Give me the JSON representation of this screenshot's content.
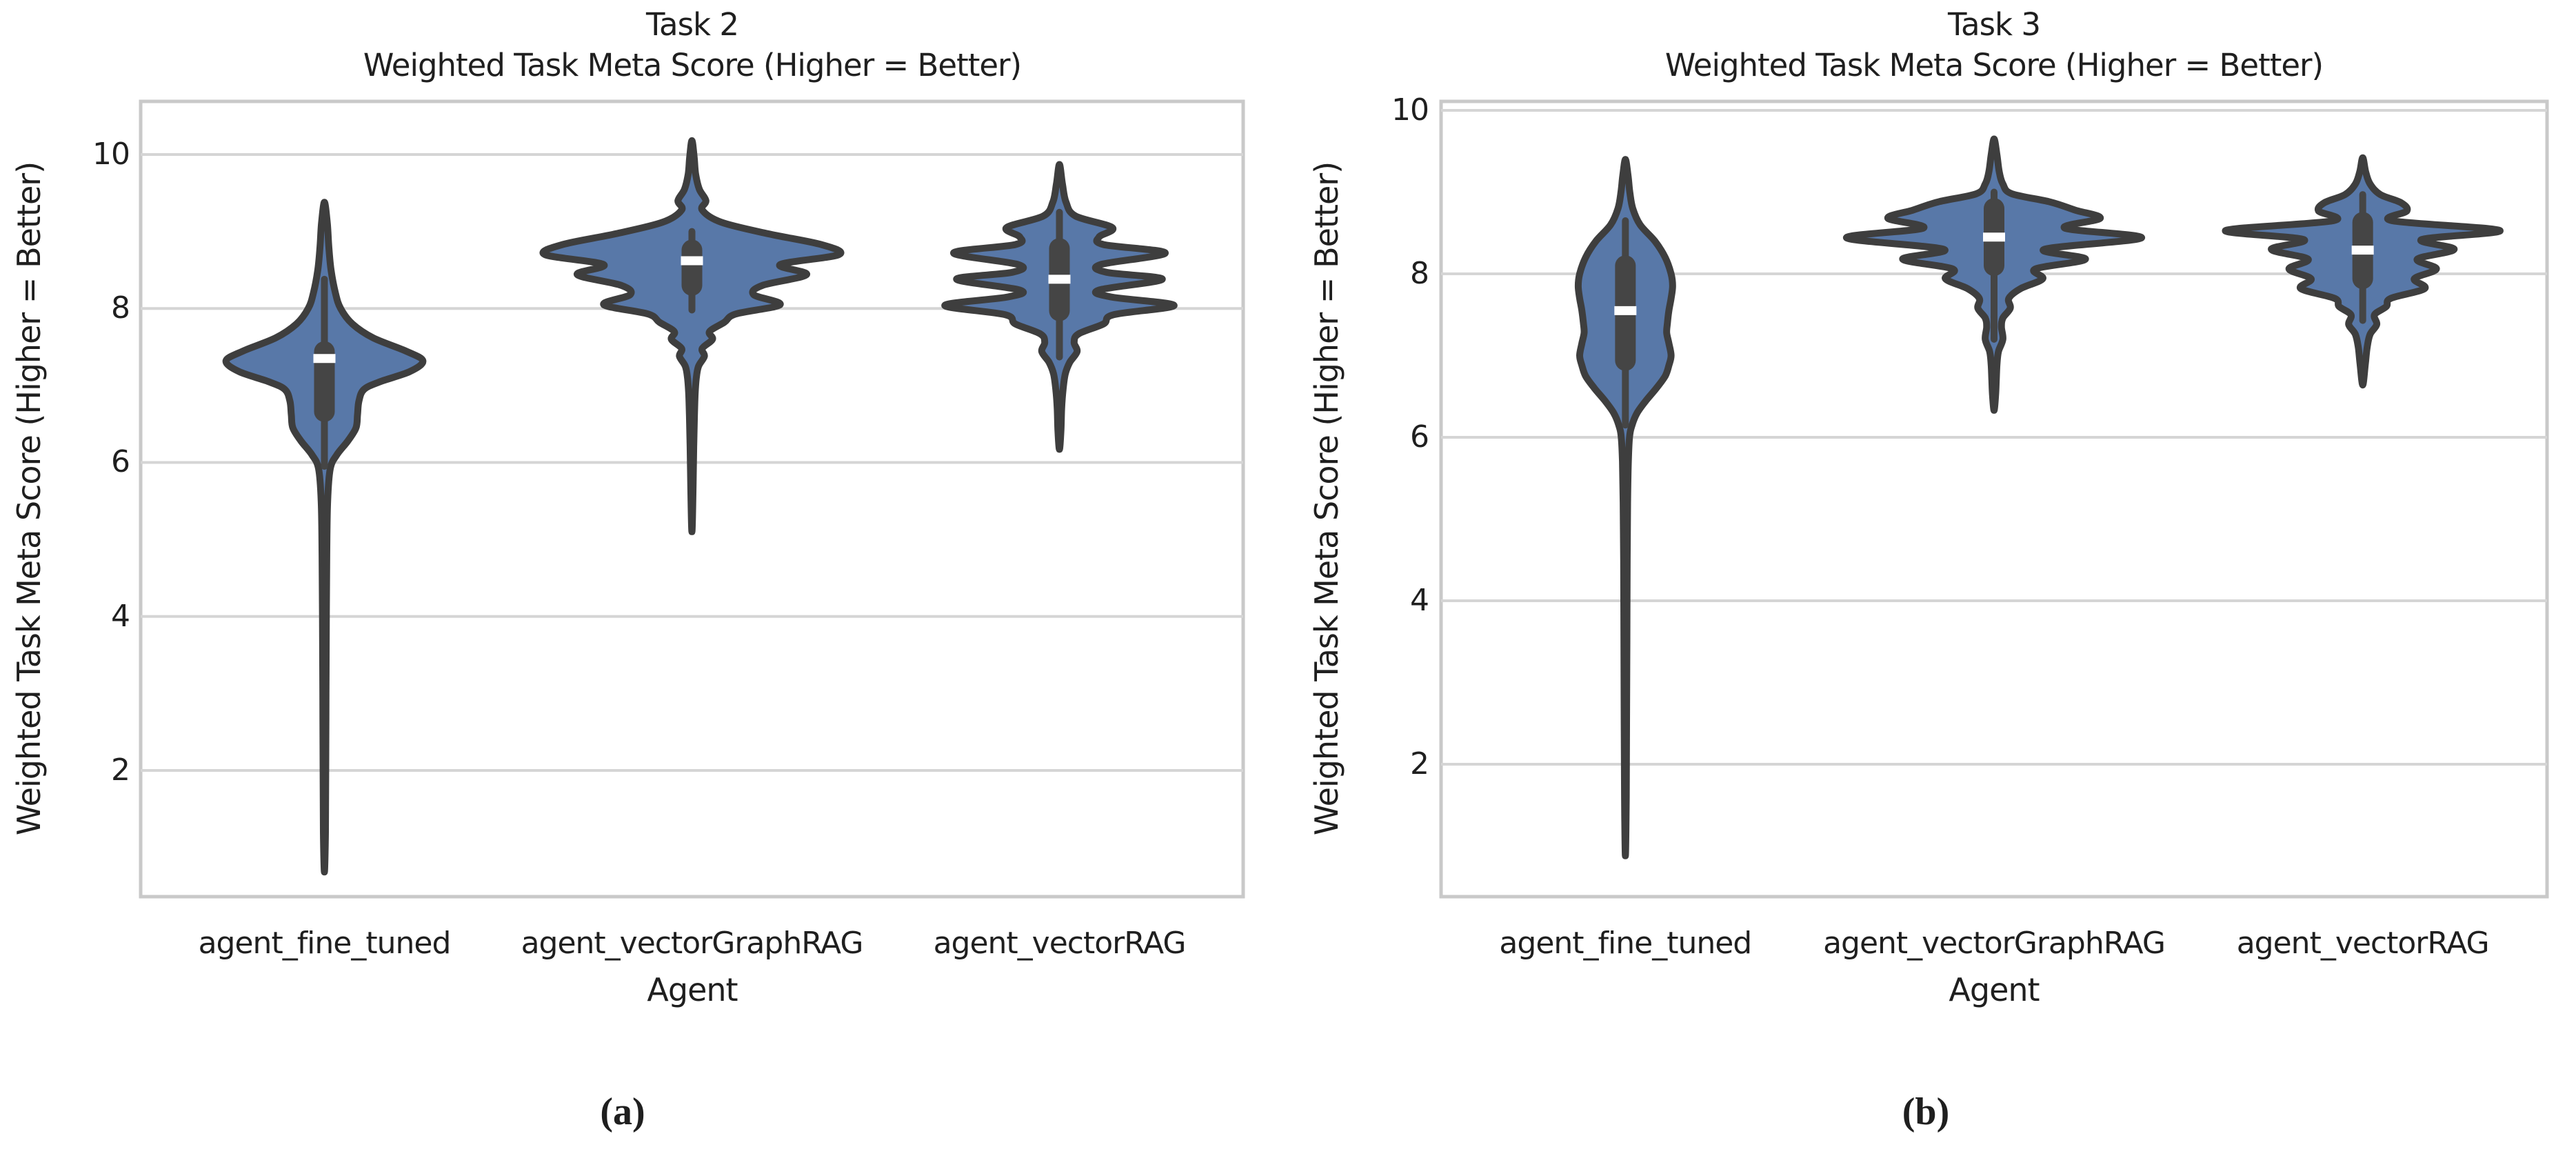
{
  "colors": {
    "background": "#FFFFFF",
    "violin_fill": "#5878A8",
    "violin_outline": "#3E3E3E",
    "box_fill": "#454545",
    "median": "#FFFFFF",
    "gridline": "#D5D5D5",
    "plot_border": "#C9C9C9",
    "text": "#1F1F1F"
  },
  "chart_data": [
    {
      "type": "violin",
      "caption": "(a)",
      "title": "Task 2",
      "subtitle": "Weighted Task Meta Score (Higher = Better)",
      "xlabel": "Agent",
      "ylabel": "Weighted Task Meta Score (Higher = Better)",
      "ylim": [
        0.36,
        10.69
      ],
      "yticks": [
        2,
        4,
        6,
        8,
        10
      ],
      "grid": "horizontal",
      "legend": "none",
      "categories": [
        "agent_fine_tuned",
        "agent_vectorGraphRAG",
        "agent_vectorRAG"
      ],
      "series": [
        {
          "name": "agent_fine_tuned",
          "range": [
            0.68,
            9.38
          ],
          "summary": {
            "whisker_low": 5.95,
            "q1": 6.66,
            "median": 7.35,
            "q3": 7.44,
            "whisker_high": 8.38
          },
          "profile": [
            [
              9.38,
              0
            ],
            [
              9.1,
              0.02
            ],
            [
              8.8,
              0.03
            ],
            [
              8.5,
              0.045
            ],
            [
              8.2,
              0.075
            ],
            [
              8.0,
              0.11
            ],
            [
              7.8,
              0.19
            ],
            [
              7.62,
              0.33
            ],
            [
              7.45,
              0.55
            ],
            [
              7.32,
              0.67
            ],
            [
              7.18,
              0.58
            ],
            [
              7.05,
              0.38
            ],
            [
              6.95,
              0.27
            ],
            [
              6.8,
              0.235
            ],
            [
              6.62,
              0.225
            ],
            [
              6.45,
              0.215
            ],
            [
              6.28,
              0.16
            ],
            [
              6.1,
              0.085
            ],
            [
              5.92,
              0.04
            ],
            [
              5.5,
              0.022
            ],
            [
              4.8,
              0.016
            ],
            [
              4.0,
              0.013
            ],
            [
              3.0,
              0.011
            ],
            [
              2.0,
              0.009
            ],
            [
              1.2,
              0.007
            ],
            [
              0.68,
              0
            ]
          ]
        },
        {
          "name": "agent_vectorGraphRAG",
          "range": [
            5.1,
            10.18
          ],
          "summary": {
            "whisker_low": 7.98,
            "q1": 8.3,
            "median": 8.62,
            "q3": 8.76,
            "whisker_high": 9.0
          },
          "profile": [
            [
              10.18,
              0
            ],
            [
              9.97,
              0.015
            ],
            [
              9.75,
              0.025
            ],
            [
              9.55,
              0.05
            ],
            [
              9.4,
              0.095
            ],
            [
              9.28,
              0.07
            ],
            [
              9.12,
              0.2
            ],
            [
              8.97,
              0.52
            ],
            [
              8.83,
              0.88
            ],
            [
              8.7,
              1.0
            ],
            [
              8.57,
              0.6
            ],
            [
              8.44,
              0.78
            ],
            [
              8.3,
              0.48
            ],
            [
              8.18,
              0.42
            ],
            [
              8.05,
              0.6
            ],
            [
              7.93,
              0.3
            ],
            [
              7.82,
              0.22
            ],
            [
              7.7,
              0.12
            ],
            [
              7.6,
              0.14
            ],
            [
              7.48,
              0.07
            ],
            [
              7.38,
              0.085
            ],
            [
              7.25,
              0.045
            ],
            [
              7.1,
              0.03
            ],
            [
              6.9,
              0.022
            ],
            [
              6.6,
              0.017
            ],
            [
              6.2,
              0.012
            ],
            [
              5.7,
              0.008
            ],
            [
              5.1,
              0
            ]
          ]
        },
        {
          "name": "agent_vectorRAG",
          "range": [
            6.17,
            9.87
          ],
          "summary": {
            "whisker_low": 7.37,
            "q1": 7.97,
            "median": 8.38,
            "q3": 8.78,
            "whisker_high": 9.25
          },
          "profile": [
            [
              9.87,
              0
            ],
            [
              9.62,
              0.02
            ],
            [
              9.38,
              0.045
            ],
            [
              9.2,
              0.11
            ],
            [
              9.05,
              0.36
            ],
            [
              8.93,
              0.27
            ],
            [
              8.83,
              0.3
            ],
            [
              8.72,
              0.72
            ],
            [
              8.57,
              0.28
            ],
            [
              8.47,
              0.32
            ],
            [
              8.38,
              0.7
            ],
            [
              8.24,
              0.27
            ],
            [
              8.15,
              0.35
            ],
            [
              8.04,
              0.78
            ],
            [
              7.92,
              0.37
            ],
            [
              7.8,
              0.3
            ],
            [
              7.67,
              0.13
            ],
            [
              7.56,
              0.1
            ],
            [
              7.44,
              0.12
            ],
            [
              7.3,
              0.07
            ],
            [
              7.15,
              0.04
            ],
            [
              6.95,
              0.025
            ],
            [
              6.7,
              0.015
            ],
            [
              6.4,
              0.01
            ],
            [
              6.17,
              0
            ]
          ]
        }
      ]
    },
    {
      "type": "violin",
      "caption": "(b)",
      "title": "Task 3",
      "subtitle": "Weighted Task Meta Score (Higher = Better)",
      "xlabel": "Agent",
      "ylabel": "Weighted Task Meta Score (Higher = Better)",
      "ylim": [
        0.38,
        10.11
      ],
      "yticks": [
        2,
        4,
        6,
        8,
        10
      ],
      "grid": "horizontal",
      "legend": "none",
      "categories": [
        "agent_fine_tuned",
        "agent_vectorGraphRAG",
        "agent_vectorRAG"
      ],
      "series": [
        {
          "name": "agent_fine_tuned",
          "range": [
            0.88,
            9.4
          ],
          "summary": {
            "whisker_low": 6.15,
            "q1": 6.94,
            "median": 7.55,
            "q3": 8.1,
            "whisker_high": 8.65
          },
          "profile": [
            [
              9.4,
              0
            ],
            [
              9.2,
              0.018
            ],
            [
              9.0,
              0.03
            ],
            [
              8.8,
              0.05
            ],
            [
              8.6,
              0.1
            ],
            [
              8.4,
              0.2
            ],
            [
              8.2,
              0.27
            ],
            [
              8.0,
              0.31
            ],
            [
              7.85,
              0.32
            ],
            [
              7.7,
              0.31
            ],
            [
              7.55,
              0.295
            ],
            [
              7.4,
              0.285
            ],
            [
              7.28,
              0.28
            ],
            [
              7.15,
              0.295
            ],
            [
              7.0,
              0.31
            ],
            [
              6.88,
              0.295
            ],
            [
              6.75,
              0.27
            ],
            [
              6.6,
              0.21
            ],
            [
              6.45,
              0.14
            ],
            [
              6.3,
              0.08
            ],
            [
              6.15,
              0.045
            ],
            [
              6.0,
              0.028
            ],
            [
              5.7,
              0.02
            ],
            [
              5.2,
              0.015
            ],
            [
              4.5,
              0.012
            ],
            [
              3.5,
              0.01
            ],
            [
              2.5,
              0.008
            ],
            [
              1.6,
              0.006
            ],
            [
              0.88,
              0
            ]
          ]
        },
        {
          "name": "agent_vectorGraphRAG",
          "range": [
            6.33,
            9.65
          ],
          "summary": {
            "whisker_low": 7.2,
            "q1": 8.1,
            "median": 8.45,
            "q3": 8.8,
            "whisker_high": 9.0
          },
          "profile": [
            [
              9.65,
              0
            ],
            [
              9.45,
              0.02
            ],
            [
              9.25,
              0.035
            ],
            [
              9.1,
              0.06
            ],
            [
              8.98,
              0.12
            ],
            [
              8.88,
              0.38
            ],
            [
              8.78,
              0.55
            ],
            [
              8.68,
              0.72
            ],
            [
              8.56,
              0.48
            ],
            [
              8.44,
              1.0
            ],
            [
              8.3,
              0.34
            ],
            [
              8.18,
              0.62
            ],
            [
              8.06,
              0.28
            ],
            [
              7.94,
              0.33
            ],
            [
              7.82,
              0.18
            ],
            [
              7.7,
              0.1
            ],
            [
              7.58,
              0.11
            ],
            [
              7.46,
              0.06
            ],
            [
              7.35,
              0.05
            ],
            [
              7.2,
              0.06
            ],
            [
              7.05,
              0.03
            ],
            [
              6.9,
              0.02
            ],
            [
              6.7,
              0.015
            ],
            [
              6.5,
              0.01
            ],
            [
              6.33,
              0
            ]
          ]
        },
        {
          "name": "agent_vectorRAG",
          "range": [
            6.64,
            9.42
          ],
          "summary": {
            "whisker_low": 7.43,
            "q1": 7.94,
            "median": 8.29,
            "q3": 8.63,
            "whisker_high": 8.97
          },
          "profile": [
            [
              9.42,
              0
            ],
            [
              9.25,
              0.02
            ],
            [
              9.1,
              0.05
            ],
            [
              8.97,
              0.12
            ],
            [
              8.87,
              0.26
            ],
            [
              8.77,
              0.3
            ],
            [
              8.65,
              0.2
            ],
            [
              8.53,
              0.93
            ],
            [
              8.42,
              0.4
            ],
            [
              8.3,
              0.62
            ],
            [
              8.18,
              0.37
            ],
            [
              8.06,
              0.5
            ],
            [
              7.94,
              0.35
            ],
            [
              7.82,
              0.42
            ],
            [
              7.7,
              0.19
            ],
            [
              7.6,
              0.16
            ],
            [
              7.5,
              0.08
            ],
            [
              7.38,
              0.095
            ],
            [
              7.26,
              0.05
            ],
            [
              7.1,
              0.03
            ],
            [
              6.9,
              0.018
            ],
            [
              6.64,
              0
            ]
          ]
        }
      ]
    }
  ]
}
